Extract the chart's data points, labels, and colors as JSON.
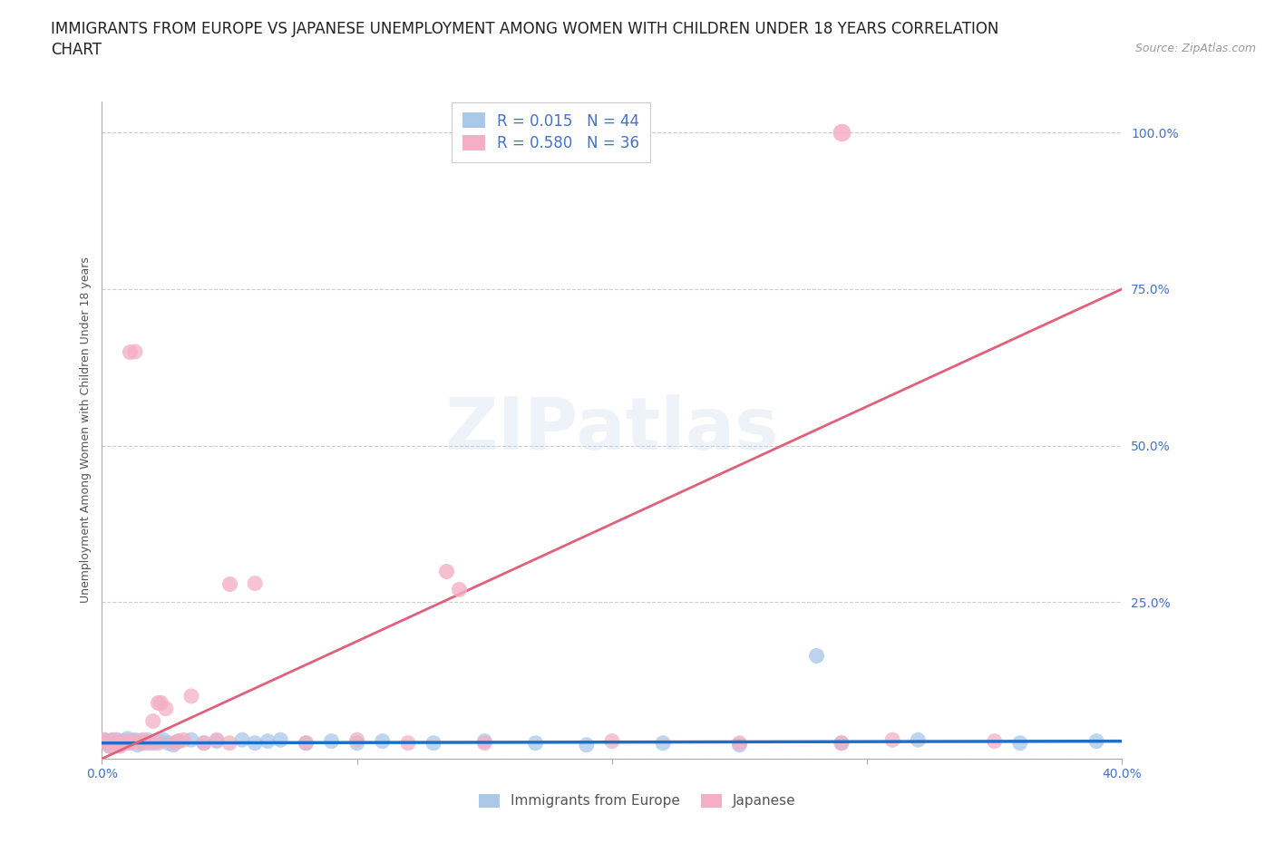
{
  "title_line1": "IMMIGRANTS FROM EUROPE VS JAPANESE UNEMPLOYMENT AMONG WOMEN WITH CHILDREN UNDER 18 YEARS CORRELATION",
  "title_line2": "CHART",
  "source": "Source: ZipAtlas.com",
  "ylabel": "Unemployment Among Women with Children Under 18 years",
  "xlim": [
    0.0,
    0.4
  ],
  "ylim": [
    0.0,
    1.05
  ],
  "xticks": [
    0.0,
    0.1,
    0.2,
    0.3,
    0.4
  ],
  "xtick_labels": [
    "0.0%",
    "",
    "",
    "",
    "40.0%"
  ],
  "yticks": [
    0.0,
    0.25,
    0.5,
    0.75,
    1.0
  ],
  "ytick_labels": [
    "",
    "25.0%",
    "50.0%",
    "75.0%",
    "100.0%"
  ],
  "background_color": "#ffffff",
  "watermark": "ZIPatlas",
  "blue_series": {
    "name": "Immigrants from Europe",
    "R": 0.015,
    "N": 44,
    "color": "#aac8e8",
    "trend_color": "#1f6fc6",
    "x": [
      0.001,
      0.002,
      0.003,
      0.004,
      0.005,
      0.006,
      0.007,
      0.008,
      0.009,
      0.01,
      0.011,
      0.012,
      0.013,
      0.014,
      0.015,
      0.016,
      0.018,
      0.02,
      0.022,
      0.024,
      0.026,
      0.028,
      0.03,
      0.035,
      0.04,
      0.045,
      0.055,
      0.06,
      0.065,
      0.07,
      0.08,
      0.09,
      0.1,
      0.11,
      0.13,
      0.15,
      0.17,
      0.19,
      0.22,
      0.25,
      0.29,
      0.32,
      0.36,
      0.39
    ],
    "y": [
      0.03,
      0.025,
      0.02,
      0.03,
      0.025,
      0.03,
      0.022,
      0.028,
      0.025,
      0.032,
      0.025,
      0.028,
      0.03,
      0.022,
      0.028,
      0.025,
      0.03,
      0.025,
      0.028,
      0.03,
      0.025,
      0.022,
      0.028,
      0.03,
      0.025,
      0.028,
      0.03,
      0.025,
      0.028,
      0.03,
      0.025,
      0.028,
      0.025,
      0.028,
      0.025,
      0.028,
      0.025,
      0.022,
      0.025,
      0.022,
      0.025,
      0.03,
      0.025,
      0.028
    ]
  },
  "pink_series": {
    "name": "Japanese",
    "R": 0.58,
    "N": 36,
    "color": "#f4afc5",
    "trend_color": "#e0607a",
    "x": [
      0.001,
      0.002,
      0.003,
      0.004,
      0.005,
      0.006,
      0.007,
      0.008,
      0.009,
      0.01,
      0.011,
      0.012,
      0.013,
      0.015,
      0.016,
      0.018,
      0.02,
      0.022,
      0.025,
      0.028,
      0.03,
      0.032,
      0.035,
      0.04,
      0.045,
      0.05,
      0.06,
      0.08,
      0.1,
      0.12,
      0.15,
      0.2,
      0.25,
      0.29,
      0.31,
      0.35
    ],
    "y": [
      0.03,
      0.025,
      0.02,
      0.025,
      0.03,
      0.025,
      0.02,
      0.025,
      0.025,
      0.028,
      0.025,
      0.028,
      0.65,
      0.025,
      0.03,
      0.025,
      0.06,
      0.025,
      0.08,
      0.025,
      0.028,
      0.03,
      0.1,
      0.025,
      0.03,
      0.025,
      0.28,
      0.025,
      0.03,
      0.025,
      0.025,
      0.028,
      0.025,
      0.025,
      0.03,
      0.028
    ]
  },
  "legend_R_blue": "R = 0.015",
  "legend_N_blue": "N = 44",
  "legend_R_pink": "R = 0.580",
  "legend_N_pink": "N = 36",
  "title_fontsize": 12,
  "axis_label_fontsize": 9,
  "tick_fontsize": 10,
  "legend_fontsize": 12,
  "source_fontsize": 9,
  "text_color": "#4472c4",
  "grid_color": "#cccccc",
  "ylabel_color": "#555555"
}
